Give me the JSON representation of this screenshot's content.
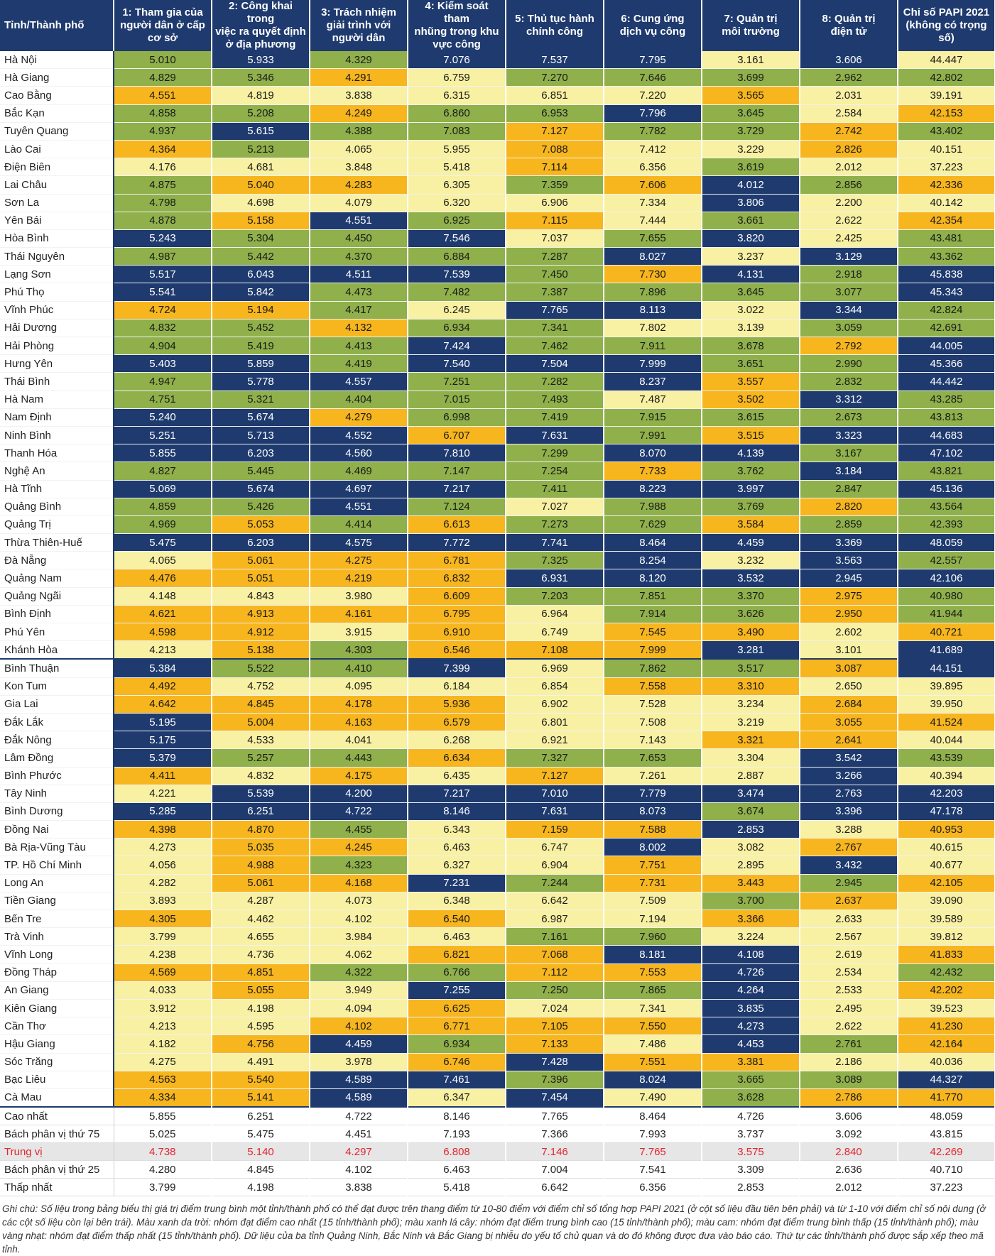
{
  "header": {
    "name_col": "Tỉnh/Thành phố",
    "cols": [
      "1: Tham gia của\nngười dân ở cấp\ncơ sở",
      "2: Công khai trong\nviệc ra quyết định\nở địa phương",
      "3: Trách nhiệm\ngiải trình với\nngười dân",
      "4: Kiểm soát tham\nnhũng trong khu\nvực công",
      "5: Thủ tục hành\nchính công",
      "6: Cung ứng\ndịch vụ công",
      "7: Quản trị\nmôi trường",
      "8: Quản trị\nđiện tử",
      "Chỉ số PAPI 2021\n(không có trọng số)"
    ]
  },
  "legend_colors": {
    "b": "#1e3a6e",
    "g": "#8fb04a",
    "o": "#f7b51e",
    "y": "#f8f0a2"
  },
  "rows": [
    {
      "name": "Hà Nội",
      "v": [
        "5.010",
        "5.933",
        "4.329",
        "7.076",
        "7.537",
        "7.795",
        "3.161",
        "3.606",
        "44.447"
      ],
      "c": "gbgbbbyby"
    },
    {
      "name": "Hà Giang",
      "v": [
        "4.829",
        "5.346",
        "4.291",
        "6.759",
        "7.270",
        "7.646",
        "3.699",
        "2.962",
        "42.802"
      ],
      "c": "ggoyggggg"
    },
    {
      "name": "Cao Bằng",
      "v": [
        "4.551",
        "4.819",
        "3.838",
        "6.315",
        "6.851",
        "7.220",
        "3.565",
        "2.031",
        "39.191"
      ],
      "c": "oyyyyyoyy"
    },
    {
      "name": "Bắc Kạn",
      "v": [
        "4.858",
        "5.208",
        "4.249",
        "6.860",
        "6.953",
        "7.796",
        "3.645",
        "2.584",
        "42.153"
      ],
      "c": "ggoggbgyo"
    },
    {
      "name": "Tuyên Quang",
      "v": [
        "4.937",
        "5.615",
        "4.388",
        "7.083",
        "7.127",
        "7.782",
        "3.729",
        "2.742",
        "43.402"
      ],
      "c": "gbggoggog"
    },
    {
      "name": "Lào Cai",
      "v": [
        "4.364",
        "5.213",
        "4.065",
        "5.955",
        "7.088",
        "7.412",
        "3.229",
        "2.826",
        "40.151"
      ],
      "c": "ogyyoyyoy"
    },
    {
      "name": "Điện Biên",
      "v": [
        "4.176",
        "4.681",
        "3.848",
        "5.418",
        "7.114",
        "6.356",
        "3.619",
        "2.012",
        "37.223"
      ],
      "c": "yyyyoygyy"
    },
    {
      "name": "Lai Châu",
      "v": [
        "4.875",
        "5.040",
        "4.283",
        "6.305",
        "7.359",
        "7.606",
        "4.012",
        "2.856",
        "42.336"
      ],
      "c": "gooygobgo"
    },
    {
      "name": "Sơn La",
      "v": [
        "4.798",
        "4.698",
        "4.079",
        "6.320",
        "6.906",
        "7.334",
        "3.806",
        "2.200",
        "40.142"
      ],
      "c": "gyyyyybyy"
    },
    {
      "name": "Yên Bái",
      "v": [
        "4.878",
        "5.158",
        "4.551",
        "6.925",
        "7.115",
        "7.444",
        "3.661",
        "2.622",
        "42.354"
      ],
      "c": "gobgoygyo"
    },
    {
      "name": "Hòa Bình",
      "v": [
        "5.243",
        "5.304",
        "4.450",
        "7.546",
        "7.037",
        "7.655",
        "3.820",
        "2.425",
        "43.481"
      ],
      "c": "bggbygbyg"
    },
    {
      "name": "Thái Nguyên",
      "v": [
        "4.987",
        "5.442",
        "4.370",
        "6.884",
        "7.287",
        "8.027",
        "3.237",
        "3.129",
        "43.362"
      ],
      "c": "gggggbybg"
    },
    {
      "name": "Lạng Sơn",
      "v": [
        "5.517",
        "6.043",
        "4.511",
        "7.539",
        "7.450",
        "7.730",
        "4.131",
        "2.918",
        "45.838"
      ],
      "c": "bbbbgobgb"
    },
    {
      "name": "Phú Thọ",
      "v": [
        "5.541",
        "5.842",
        "4.473",
        "7.482",
        "7.387",
        "7.896",
        "3.645",
        "3.077",
        "45.343"
      ],
      "c": "bbggggggb"
    },
    {
      "name": "Vĩnh Phúc",
      "v": [
        "4.724",
        "5.194",
        "4.417",
        "6.245",
        "7.765",
        "8.113",
        "3.022",
        "3.344",
        "42.824"
      ],
      "c": "oogybbybg"
    },
    {
      "name": "Hải Dương",
      "v": [
        "4.832",
        "5.452",
        "4.132",
        "6.934",
        "7.341",
        "7.802",
        "3.139",
        "3.059",
        "42.691"
      ],
      "c": "ggoggyygg"
    },
    {
      "name": "Hải Phòng",
      "v": [
        "4.904",
        "5.419",
        "4.413",
        "7.424",
        "7.462",
        "7.911",
        "3.678",
        "2.792",
        "44.005"
      ],
      "c": "gggbgggob"
    },
    {
      "name": "Hưng Yên",
      "v": [
        "5.403",
        "5.859",
        "4.419",
        "7.540",
        "7.504",
        "7.999",
        "3.651",
        "2.990",
        "45.366"
      ],
      "c": "bbgbbbggb"
    },
    {
      "name": "Thái Bình",
      "v": [
        "4.947",
        "5.778",
        "4.557",
        "7.251",
        "7.282",
        "8.237",
        "3.557",
        "2.832",
        "44.442"
      ],
      "c": "gbbggbogb"
    },
    {
      "name": "Hà Nam",
      "v": [
        "4.751",
        "5.321",
        "4.404",
        "7.015",
        "7.493",
        "7.487",
        "3.502",
        "3.312",
        "43.285"
      ],
      "c": "gggggyobg"
    },
    {
      "name": "Nam Định",
      "v": [
        "5.240",
        "5.674",
        "4.279",
        "6.998",
        "7.419",
        "7.915",
        "3.615",
        "2.673",
        "43.813"
      ],
      "c": "bbogggggg"
    },
    {
      "name": "Ninh Bình",
      "v": [
        "5.251",
        "5.713",
        "4.552",
        "6.707",
        "7.631",
        "7.991",
        "3.515",
        "3.323",
        "44.683"
      ],
      "c": "bbbobgobb"
    },
    {
      "name": "Thanh Hóa",
      "v": [
        "5.855",
        "6.203",
        "4.560",
        "7.810",
        "7.299",
        "8.070",
        "4.139",
        "3.167",
        "47.102"
      ],
      "c": "bbbbgbbgb"
    },
    {
      "name": "Nghệ An",
      "v": [
        "4.827",
        "5.445",
        "4.469",
        "7.147",
        "7.254",
        "7.733",
        "3.762",
        "3.184",
        "43.821"
      ],
      "c": "gggggogbg"
    },
    {
      "name": "Hà Tĩnh",
      "v": [
        "5.069",
        "5.674",
        "4.697",
        "7.217",
        "7.411",
        "8.223",
        "3.997",
        "2.847",
        "45.136"
      ],
      "c": "bbbbgbbgb"
    },
    {
      "name": "Quảng Bình",
      "v": [
        "4.859",
        "5.426",
        "4.551",
        "7.124",
        "7.027",
        "7.988",
        "3.769",
        "2.820",
        "43.564"
      ],
      "c": "ggbgyggog"
    },
    {
      "name": "Quảng Trị",
      "v": [
        "4.969",
        "5.053",
        "4.414",
        "6.613",
        "7.273",
        "7.629",
        "3.584",
        "2.859",
        "42.393"
      ],
      "c": "gogoggogg"
    },
    {
      "name": "Thừa Thiên-Huế",
      "v": [
        "5.475",
        "6.203",
        "4.575",
        "7.772",
        "7.741",
        "8.464",
        "4.459",
        "3.369",
        "48.059"
      ],
      "c": "bbbbbbbbb"
    },
    {
      "name": "Đà Nẵng",
      "v": [
        "4.065",
        "5.061",
        "4.275",
        "6.781",
        "7.325",
        "8.254",
        "3.232",
        "3.563",
        "42.557"
      ],
      "c": "yooogbybg"
    },
    {
      "name": "Quảng Nam",
      "v": [
        "4.476",
        "5.051",
        "4.219",
        "6.832",
        "6.931",
        "8.120",
        "3.532",
        "2.945",
        "42.106"
      ],
      "c": "oooobbbbb"
    },
    {
      "name": "Quảng Ngãi",
      "v": [
        "4.148",
        "4.843",
        "3.980",
        "6.609",
        "7.203",
        "7.851",
        "3.370",
        "2.975",
        "40.980"
      ],
      "c": "yyyogggog"
    },
    {
      "name": "Bình Định",
      "v": [
        "4.621",
        "4.913",
        "4.161",
        "6.795",
        "6.964",
        "7.914",
        "3.626",
        "2.950",
        "41.944"
      ],
      "c": "ooooyggog"
    },
    {
      "name": "Phú Yên",
      "v": [
        "4.598",
        "4.912",
        "3.915",
        "6.910",
        "6.749",
        "7.545",
        "3.490",
        "2.602",
        "40.721"
      ],
      "c": "ooyoyooyo"
    },
    {
      "name": "Khánh Hòa",
      "v": [
        "4.213",
        "5.138",
        "4.303",
        "6.546",
        "7.108",
        "7.999",
        "3.281",
        "3.101",
        "41.689"
      ],
      "c": "yogooobyb"
    },
    {
      "name": "Bình Thuận",
      "v": [
        "5.384",
        "5.522",
        "4.410",
        "7.399",
        "6.969",
        "7.862",
        "3.517",
        "3.087",
        "44.151"
      ],
      "c": "bggbyggob"
    },
    {
      "name": "Kon Tum",
      "v": [
        "4.492",
        "4.752",
        "4.095",
        "6.184",
        "6.854",
        "7.558",
        "3.310",
        "2.650",
        "39.895"
      ],
      "c": "oyyyyooyy"
    },
    {
      "name": "Gia Lai",
      "v": [
        "4.642",
        "4.845",
        "4.178",
        "5.936",
        "6.902",
        "7.528",
        "3.234",
        "2.684",
        "39.950"
      ],
      "c": "ooooyyyoy"
    },
    {
      "name": "Đắk Lắk",
      "v": [
        "5.195",
        "5.004",
        "4.163",
        "6.579",
        "6.801",
        "7.508",
        "3.219",
        "3.055",
        "41.524"
      ],
      "c": "boooyyyoo"
    },
    {
      "name": "Đắk Nông",
      "v": [
        "5.175",
        "4.533",
        "4.041",
        "6.268",
        "6.921",
        "7.143",
        "3.321",
        "2.641",
        "40.044"
      ],
      "c": "byyyyyooy"
    },
    {
      "name": "Lâm Đồng",
      "v": [
        "5.379",
        "5.257",
        "4.443",
        "6.634",
        "7.327",
        "7.653",
        "3.304",
        "3.542",
        "43.539"
      ],
      "c": "bggoggybg"
    },
    {
      "name": "Bình Phước",
      "v": [
        "4.411",
        "4.832",
        "4.175",
        "6.435",
        "7.127",
        "7.261",
        "2.887",
        "3.266",
        "40.394"
      ],
      "c": "oyoyoyyby"
    },
    {
      "name": "Tây Ninh",
      "v": [
        "4.221",
        "5.539",
        "4.200",
        "7.217",
        "7.010",
        "7.779",
        "3.474",
        "2.763",
        "42.203"
      ],
      "c": "ybbbbbbbb"
    },
    {
      "name": "Bình Dương",
      "v": [
        "5.285",
        "6.251",
        "4.722",
        "8.146",
        "7.631",
        "8.073",
        "3.674",
        "3.396",
        "47.178"
      ],
      "c": "bbbbbbgbb"
    },
    {
      "name": "Đồng Nai",
      "v": [
        "4.398",
        "4.870",
        "4.455",
        "6.343",
        "7.159",
        "7.588",
        "2.853",
        "3.288",
        "40.953"
      ],
      "c": "oogyoobyo"
    },
    {
      "name": "Bà Rịa-Vũng Tàu",
      "v": [
        "4.273",
        "5.035",
        "4.245",
        "6.463",
        "6.747",
        "8.002",
        "3.082",
        "2.767",
        "40.615"
      ],
      "c": "yooyybyoy"
    },
    {
      "name": "TP. Hồ Chí Minh",
      "v": [
        "4.056",
        "4.988",
        "4.323",
        "6.327",
        "6.904",
        "7.751",
        "2.895",
        "3.432",
        "40.677"
      ],
      "c": "yogyyoyby"
    },
    {
      "name": "Long An",
      "v": [
        "4.282",
        "5.061",
        "4.168",
        "7.231",
        "7.244",
        "7.731",
        "3.443",
        "2.945",
        "42.105"
      ],
      "c": "yoobgoogo"
    },
    {
      "name": "Tiền Giang",
      "v": [
        "3.893",
        "4.287",
        "4.073",
        "6.348",
        "6.642",
        "7.509",
        "3.700",
        "2.637",
        "39.090"
      ],
      "c": "yyyyyygoy"
    },
    {
      "name": "Bến Tre",
      "v": [
        "4.305",
        "4.462",
        "4.102",
        "6.540",
        "6.987",
        "7.194",
        "3.366",
        "2.633",
        "39.589"
      ],
      "c": "oyyoyyoyy"
    },
    {
      "name": "Trà Vinh",
      "v": [
        "3.799",
        "4.655",
        "3.984",
        "6.463",
        "7.161",
        "7.960",
        "3.224",
        "2.567",
        "39.812"
      ],
      "c": "yyyyggyyy"
    },
    {
      "name": "Vĩnh Long",
      "v": [
        "4.238",
        "4.736",
        "4.062",
        "6.821",
        "7.068",
        "8.181",
        "4.108",
        "2.619",
        "41.833"
      ],
      "c": "yyyoobbyo"
    },
    {
      "name": "Đồng Tháp",
      "v": [
        "4.569",
        "4.851",
        "4.322",
        "6.766",
        "7.112",
        "7.553",
        "4.726",
        "2.534",
        "42.432"
      ],
      "c": "ooggoobyg"
    },
    {
      "name": "An Giang",
      "v": [
        "4.033",
        "5.055",
        "3.949",
        "7.255",
        "7.250",
        "7.865",
        "4.264",
        "2.533",
        "42.202"
      ],
      "c": "yoybggbyo"
    },
    {
      "name": "Kiên Giang",
      "v": [
        "3.912",
        "4.198",
        "4.094",
        "6.625",
        "7.024",
        "7.341",
        "3.835",
        "2.495",
        "39.523"
      ],
      "c": "yyyoyybyy"
    },
    {
      "name": "Cần Thơ",
      "v": [
        "4.213",
        "4.595",
        "4.102",
        "6.771",
        "7.105",
        "7.550",
        "4.273",
        "2.622",
        "41.230"
      ],
      "c": "yyoooobyo"
    },
    {
      "name": "Hậu Giang",
      "v": [
        "4.182",
        "4.756",
        "4.459",
        "6.934",
        "7.133",
        "7.486",
        "4.453",
        "2.761",
        "42.164"
      ],
      "c": "yobgoybgo"
    },
    {
      "name": "Sóc Trăng",
      "v": [
        "4.275",
        "4.491",
        "3.978",
        "6.746",
        "7.428",
        "7.551",
        "3.381",
        "2.186",
        "40.036"
      ],
      "c": "yyyobooyy"
    },
    {
      "name": "Bạc Liêu",
      "v": [
        "4.563",
        "5.540",
        "4.589",
        "7.461",
        "7.396",
        "8.024",
        "3.665",
        "3.089",
        "44.327"
      ],
      "c": "oobbgbggb"
    },
    {
      "name": "Cà Mau",
      "v": [
        "4.334",
        "5.141",
        "4.589",
        "6.347",
        "7.454",
        "7.490",
        "3.628",
        "2.786",
        "41.770"
      ],
      "c": "oobybygoo"
    }
  ],
  "summary": [
    {
      "name": "Cao nhất",
      "v": [
        "5.855",
        "6.251",
        "4.722",
        "8.146",
        "7.765",
        "8.464",
        "4.726",
        "3.606",
        "48.059"
      ]
    },
    {
      "name": "Bách phân vị thứ 75",
      "v": [
        "5.025",
        "5.475",
        "4.451",
        "7.193",
        "7.366",
        "7.993",
        "3.737",
        "3.092",
        "43.815"
      ]
    },
    {
      "name": "Trung vị",
      "v": [
        "4.738",
        "5.140",
        "4.297",
        "6.808",
        "7.146",
        "7.765",
        "3.575",
        "2.840",
        "42.269"
      ]
    },
    {
      "name": "Bách phân vị thứ 25",
      "v": [
        "4.280",
        "4.845",
        "4.102",
        "6.463",
        "7.004",
        "7.541",
        "3.309",
        "2.636",
        "40.710"
      ]
    },
    {
      "name": "Thấp nhất",
      "v": [
        "3.799",
        "4.198",
        "3.838",
        "5.418",
        "6.642",
        "6.356",
        "2.853",
        "2.012",
        "37.223"
      ]
    }
  ],
  "note": "Ghi chú: Số liệu trong bảng biểu thị giá trị điểm trung bình một tỉnh/thành phố có thể đạt được trên thang điểm từ 10-80 điểm với điểm chỉ số tổng hợp PAPI 2021 (ở cột số liệu đầu tiên bên phải) và từ 1-10 với điểm chỉ số nội dung (ở các cột số liệu còn lại bên trái). Màu xanh da trời: nhóm đạt điểm cao nhất (15 tỉnh/thành phố); màu xanh lá cây: nhóm đạt điểm trung bình cao (15 tỉnh/thành phố); màu cam: nhóm đạt điểm trung bình thấp (15 tỉnh/thành phố); màu vàng nhạt: nhóm đạt điểm thấp nhất (15 tỉnh/thành phố). Dữ liệu của ba tỉnh Quảng Ninh, Bắc Ninh và Bắc Giang bị nhiễu do yếu tố chủ quan và do đó không được đưa vào báo cáo. Thứ tự các tỉnh/thành phố được sắp xếp theo mã tỉnh."
}
